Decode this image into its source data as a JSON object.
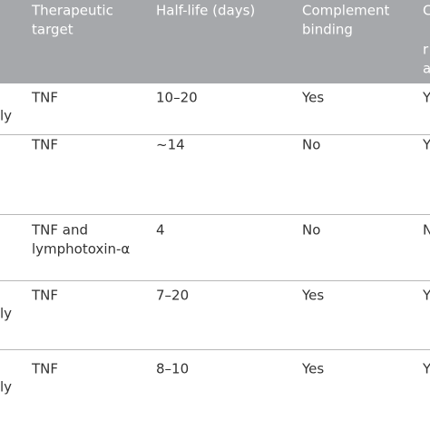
{
  "table": {
    "header": {
      "target": [
        "Therapeutic",
        "target"
      ],
      "halflife": [
        "Half-life (days)"
      ],
      "complement": [
        "Complement",
        "binding"
      ],
      "last": [
        "C",
        "r",
        "a"
      ]
    },
    "rows": [
      {
        "first": "ly",
        "target": [
          "TNF"
        ],
        "halflife": "10–20",
        "complement": "Yes",
        "last": "Y"
      },
      {
        "target": [
          "TNF"
        ],
        "halflife": "~14",
        "complement": "No",
        "last": "Y"
      },
      {
        "target": [
          "TNF and",
          "lymphotoxin-α"
        ],
        "halflife": "4",
        "complement": "No",
        "last": "N"
      },
      {
        "first": "ly",
        "target": [
          "TNF"
        ],
        "halflife": "7–20",
        "complement": "Yes",
        "last": "Y"
      },
      {
        "first": "ly",
        "target": [
          "TNF"
        ],
        "halflife": "8–10",
        "complement": "Yes",
        "last": "Y"
      }
    ]
  }
}
